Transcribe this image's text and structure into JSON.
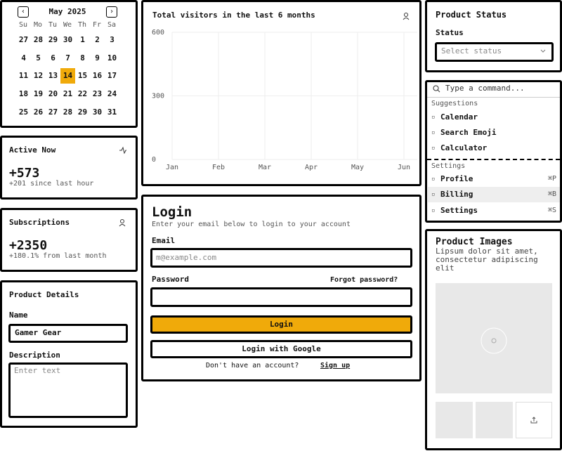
{
  "calendar": {
    "month": "May 2025",
    "weekdays": [
      "Su",
      "Mo",
      "Tu",
      "We",
      "Th",
      "Fr",
      "Sa"
    ],
    "weeks": [
      [
        "27",
        "28",
        "29",
        "30",
        "1",
        "2",
        "3"
      ],
      [
        "4",
        "5",
        "6",
        "7",
        "8",
        "9",
        "10"
      ],
      [
        "11",
        "12",
        "13",
        "14",
        "15",
        "16",
        "17"
      ],
      [
        "18",
        "19",
        "20",
        "21",
        "22",
        "23",
        "24"
      ],
      [
        "25",
        "26",
        "27",
        "28",
        "29",
        "30",
        "31"
      ]
    ],
    "selected_day": "14"
  },
  "active_now": {
    "title": "Active Now",
    "value": "+573",
    "note": "+201 since last hour"
  },
  "subscriptions": {
    "title": "Subscriptions",
    "value": "+2350",
    "note": "+180.1% from last month"
  },
  "product_details": {
    "title": "Product Details",
    "name_label": "Name",
    "name_value": "Gamer Gear",
    "description_label": "Description",
    "description_placeholder": "Enter text"
  },
  "visitors_chart": {
    "title": "Total visitors in the last 6 months",
    "categories": [
      "Jan",
      "Feb",
      "Mar",
      "Apr",
      "May",
      "Jun"
    ],
    "ylim": [
      0,
      600
    ],
    "yticks": [
      0,
      300,
      600
    ],
    "grid": true
  },
  "login": {
    "title": "Login",
    "subtitle": "Enter your email below to login to your account",
    "email_label": "Email",
    "email_placeholder": "m@example.com",
    "password_label": "Password",
    "forgot": "Forgot password?",
    "login_button": "Login",
    "google_button": "Login with Google",
    "signup_prompt": "Don't have an account?",
    "signup_link": "Sign up"
  },
  "product_status": {
    "title": "Product Status",
    "status_label": "Status",
    "select_placeholder": "Select status"
  },
  "command": {
    "placeholder": "Type a command...",
    "suggestions_heading": "Suggestions",
    "suggestions": [
      "Calendar",
      "Search Emoji",
      "Calculator"
    ],
    "settings_heading": "Settings",
    "settings": [
      {
        "label": "Profile",
        "shortcut": "⌘P"
      },
      {
        "label": "Billing",
        "shortcut": "⌘B"
      },
      {
        "label": "Settings",
        "shortcut": "⌘S"
      }
    ]
  },
  "product_images": {
    "title": "Product Images",
    "description": "Lipsum dolor sit amet, consectetur adipiscing elit"
  }
}
